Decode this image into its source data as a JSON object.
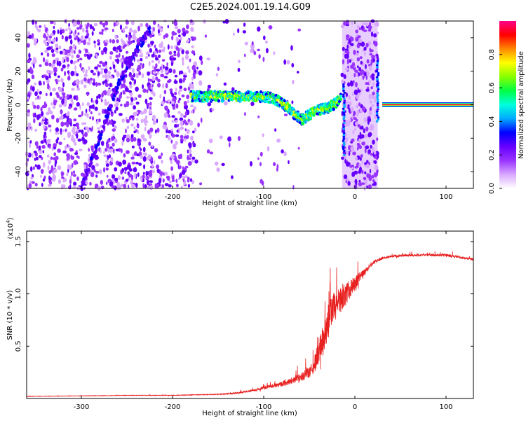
{
  "title": "C2E5.2024.001.19.14.G09",
  "chart_data": [
    {
      "type": "heatmap",
      "title": "C2E5.2024.001.19.14.G09",
      "xlabel": "Height of straight line (km)",
      "ylabel": "Frequency (Hz)",
      "xlim": [
        -360,
        130
      ],
      "ylim": [
        -50,
        50
      ],
      "x_ticks": [
        -300,
        -200,
        -100,
        0,
        100
      ],
      "x_tick_labels": [
        "-300",
        "-200",
        "-100",
        "0",
        "100"
      ],
      "y_ticks": [
        -40,
        -20,
        0,
        20,
        40
      ],
      "y_tick_labels": [
        "-40",
        "-20",
        "0",
        "20",
        "40"
      ],
      "grid": false,
      "colorbar": {
        "label": "Normalized spectral amplitude",
        "range": [
          0,
          1
        ],
        "ticks": [
          0.0,
          0.2,
          0.4,
          0.6,
          0.8
        ],
        "tick_labels": [
          "0.0",
          "0.2",
          "0.4",
          "0.6",
          "0.8"
        ],
        "colors": [
          "#ffffff",
          "#d9a8ff",
          "#9933ff",
          "#6600ff",
          "#0000ff",
          "#00aaff",
          "#00ffdd",
          "#00ff44",
          "#88ff00",
          "#ffff00",
          "#ff8800",
          "#ff0000",
          "#ff0088"
        ]
      },
      "features": {
        "ridge_center_hz": [
          [
            -180,
            5
          ],
          [
            -140,
            5
          ],
          [
            -110,
            5
          ],
          [
            -90,
            4
          ],
          [
            -80,
            1
          ],
          [
            -70,
            -4
          ],
          [
            -58,
            -9
          ],
          [
            -50,
            -6
          ],
          [
            -40,
            -3
          ],
          [
            -30,
            -2
          ],
          [
            -20,
            1
          ],
          [
            -15,
            5
          ]
        ],
        "diagonal_trace": [
          [
            -300,
            -50
          ],
          [
            -280,
            -20
          ],
          [
            -260,
            12
          ],
          [
            -240,
            32
          ],
          [
            -225,
            45
          ]
        ],
        "tone_x_range": [
          30,
          130
        ],
        "tone_frequency_hz": 0
      }
    },
    {
      "type": "line",
      "xlabel": "Height of straight line (km)",
      "ylabel": "SNR (10 * v/v)",
      "scale_label": "(x10",
      "scale_exponent": "4",
      "scale_suffix": ")",
      "xlim": [
        -360,
        130
      ],
      "ylim": [
        0,
        1.6
      ],
      "x_ticks": [
        -300,
        -200,
        -100,
        0,
        100
      ],
      "x_tick_labels": [
        "-300",
        "-200",
        "-100",
        "0",
        "100"
      ],
      "y_ticks": [
        0.5,
        1.0,
        1.5
      ],
      "y_tick_labels": [
        "0.5",
        "1.0",
        "1.5"
      ],
      "grid": false,
      "series": [
        {
          "color": "#e82020",
          "x": [
            -360,
            -300,
            -250,
            -200,
            -150,
            -130,
            -110,
            -100,
            -90,
            -80,
            -70,
            -60,
            -50,
            -45,
            -40,
            -35,
            -30,
            -25,
            -20,
            -15,
            -10,
            -5,
            0,
            5,
            10,
            15,
            20,
            25,
            30,
            40,
            60,
            80,
            100,
            115,
            130
          ],
          "y": [
            0.02,
            0.025,
            0.03,
            0.03,
            0.04,
            0.05,
            0.08,
            0.1,
            0.12,
            0.14,
            0.17,
            0.2,
            0.25,
            0.3,
            0.45,
            0.55,
            0.7,
            0.85,
            0.9,
            0.95,
            1.0,
            1.05,
            1.1,
            1.15,
            1.2,
            1.25,
            1.3,
            1.32,
            1.34,
            1.36,
            1.37,
            1.37,
            1.37,
            1.35,
            1.33
          ],
          "spike_amplitude": [
            0.005,
            0.005,
            0.006,
            0.006,
            0.01,
            0.02,
            0.03,
            0.04,
            0.05,
            0.07,
            0.09,
            0.11,
            0.15,
            0.2,
            0.35,
            0.45,
            0.5,
            0.45,
            0.4,
            0.35,
            0.3,
            0.25,
            0.2,
            0.15,
            0.1,
            0.07,
            0.05,
            0.04,
            0.03,
            0.03,
            0.03,
            0.03,
            0.04,
            0.03,
            0.03
          ]
        }
      ]
    }
  ]
}
